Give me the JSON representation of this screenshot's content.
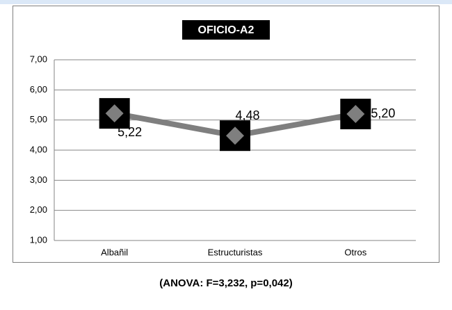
{
  "chart_data": {
    "type": "line",
    "title": "OFICIO-A2",
    "categories": [
      "Albañil",
      "Estructuristas",
      "Otros"
    ],
    "series": [
      {
        "color": "#7f7f7f",
        "values": [
          5.22,
          4.48,
          5.2
        ],
        "value_labels": [
          "5,22",
          "4,48",
          "5,20"
        ]
      }
    ],
    "ylim": [
      1,
      7
    ],
    "yticks": [
      {
        "value": 1,
        "label": "1,00"
      },
      {
        "value": 2,
        "label": "2,00"
      },
      {
        "value": 3,
        "label": "3,00"
      },
      {
        "value": 4,
        "label": "4,00"
      },
      {
        "value": 5,
        "label": "5,00"
      },
      {
        "value": 6,
        "label": "6,00"
      },
      {
        "value": 7,
        "label": "7,00"
      }
    ],
    "grid": true,
    "caption": "(ANOVA: F=3,232, p=0,042)"
  }
}
